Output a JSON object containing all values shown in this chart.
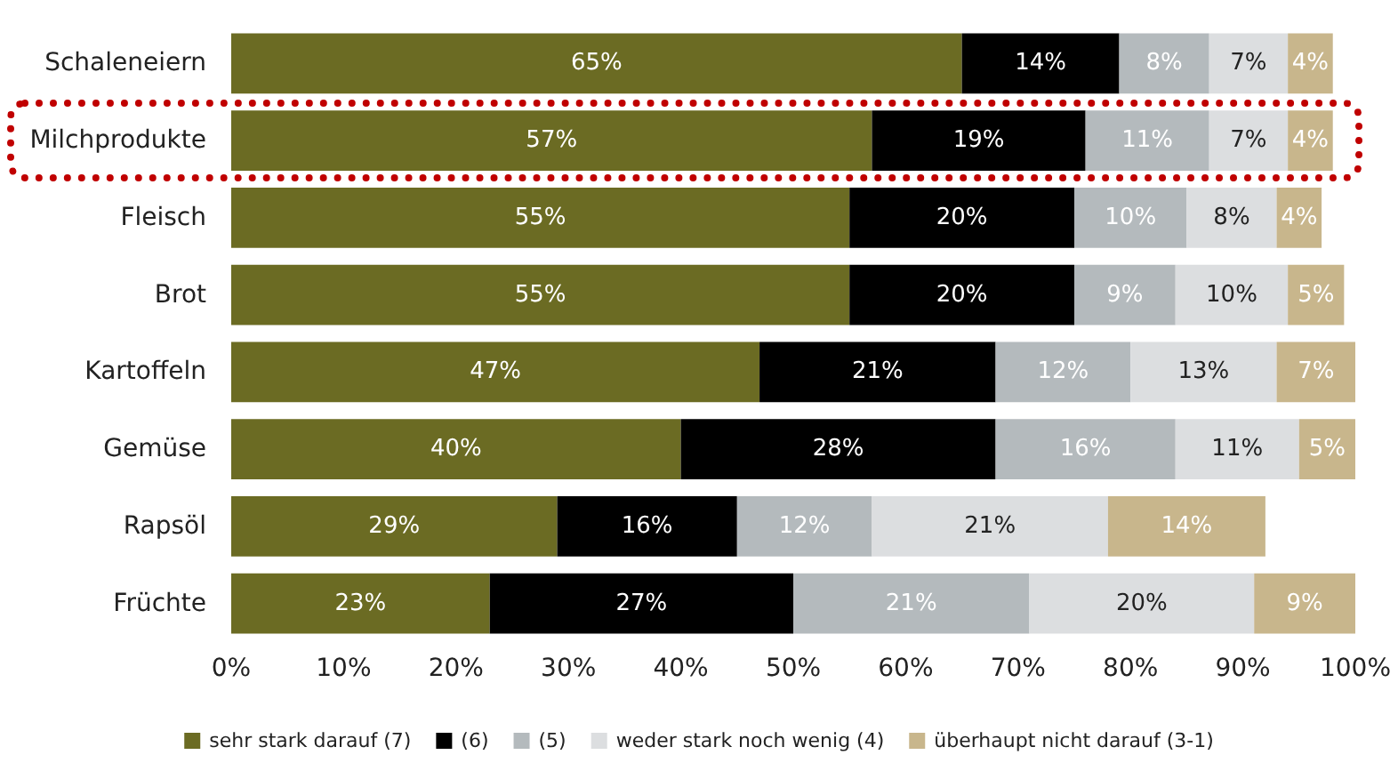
{
  "chart_data": {
    "type": "bar",
    "orientation": "horizontal",
    "stacked": true,
    "grid": false,
    "legend": "bottom",
    "categories": [
      "Schaleneiern",
      "Milchprodukte",
      "Fleisch",
      "Brot",
      "Kartoffeln",
      "Gemüse",
      "Rapsöl",
      "Früchte"
    ],
    "series": [
      {
        "name": "sehr stark darauf (7)",
        "color": "#6b6b23",
        "values": [
          65,
          57,
          55,
          55,
          47,
          40,
          29,
          23
        ],
        "value_labels": [
          "65%",
          "57%",
          "55%",
          "55%",
          "47%",
          "40%",
          "29%",
          "23%"
        ]
      },
      {
        "name": "(6)",
        "color": "#000000",
        "values": [
          14,
          19,
          20,
          20,
          21,
          28,
          16,
          27
        ],
        "value_labels": [
          "14%",
          "19%",
          "20%",
          "20%",
          "21%",
          "28%",
          "16%",
          "27%"
        ]
      },
      {
        "name": "(5)",
        "color": "#b4babd",
        "values": [
          8,
          11,
          10,
          9,
          12,
          16,
          12,
          21
        ],
        "value_labels": [
          "8%",
          "11%",
          "10%",
          "9%",
          "12%",
          "16%",
          "12%",
          "21%"
        ]
      },
      {
        "name": "weder stark noch wenig (4)",
        "color": "#dcdee0",
        "values": [
          7,
          7,
          8,
          10,
          13,
          11,
          21,
          20
        ],
        "value_labels": [
          "7%",
          "7%",
          "8%",
          "10%",
          "13%",
          "11%",
          "21%",
          "20%"
        ]
      },
      {
        "name": "überhaupt nicht darauf (3-1)",
        "color": "#c8b68c",
        "values": [
          4,
          4,
          4,
          5,
          7,
          5,
          14,
          9
        ],
        "value_labels": [
          "4%",
          "4%",
          "4%",
          "5%",
          "7%",
          "5%",
          "14%",
          "9%"
        ]
      }
    ],
    "xlim": [
      0,
      100
    ],
    "xticks": [
      {
        "value": 0,
        "label": "0%"
      },
      {
        "value": 10,
        "label": "10%"
      },
      {
        "value": 20,
        "label": "20%"
      },
      {
        "value": 30,
        "label": "30%"
      },
      {
        "value": 40,
        "label": "40%"
      },
      {
        "value": 50,
        "label": "50%"
      },
      {
        "value": 60,
        "label": "60%"
      },
      {
        "value": 70,
        "label": "70%"
      },
      {
        "value": 80,
        "label": "80%"
      },
      {
        "value": 90,
        "label": "90%"
      },
      {
        "value": 100,
        "label": "100%"
      }
    ]
  }
}
